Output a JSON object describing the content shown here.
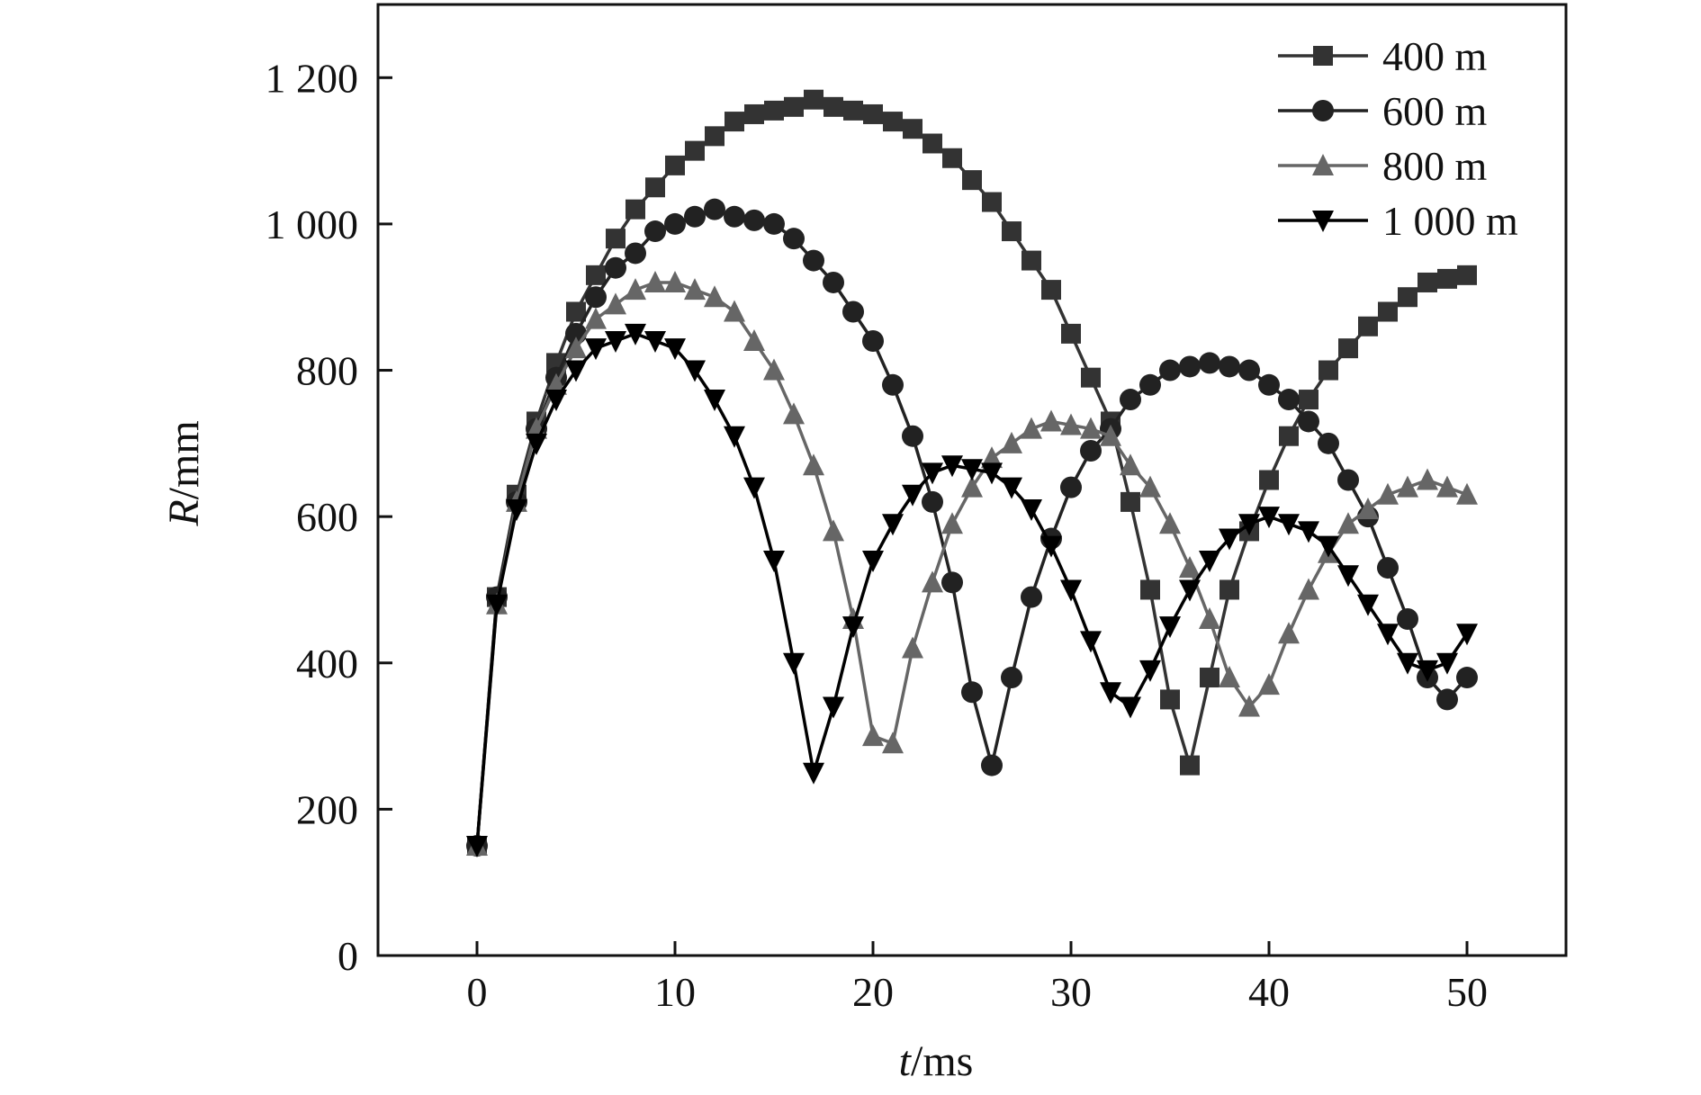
{
  "chart_data": {
    "type": "line",
    "title": "",
    "xlabel": {
      "var": "t",
      "unit": "/ms"
    },
    "ylabel": {
      "var": "R",
      "unit": "/mm"
    },
    "xlim": [
      -5,
      55
    ],
    "ylim": [
      0,
      1300
    ],
    "xticks": [
      0,
      10,
      20,
      30,
      40,
      50
    ],
    "xtick_labels": [
      "0",
      "10",
      "20",
      "30",
      "40",
      "50"
    ],
    "yticks": [
      0,
      200,
      400,
      600,
      800,
      1000,
      1200
    ],
    "ytick_labels": [
      "0",
      "200",
      "400",
      "600",
      "800",
      "1 000",
      "1 200"
    ],
    "grid": false,
    "legend_position": "top-right",
    "x": [
      0,
      1,
      2,
      3,
      4,
      5,
      6,
      7,
      8,
      9,
      10,
      11,
      12,
      13,
      14,
      15,
      16,
      17,
      18,
      19,
      20,
      21,
      22,
      23,
      24,
      25,
      26,
      27,
      28,
      29,
      30,
      31,
      32,
      33,
      34,
      35,
      36,
      37,
      38,
      39,
      40,
      41,
      42,
      43,
      44,
      45,
      46,
      47,
      48,
      49,
      50
    ],
    "series": [
      {
        "name": "400 m",
        "marker": "square",
        "color": "#333333",
        "values": [
          150,
          490,
          630,
          730,
          810,
          880,
          930,
          980,
          1020,
          1050,
          1080,
          1100,
          1120,
          1140,
          1150,
          1155,
          1160,
          1170,
          1160,
          1155,
          1150,
          1140,
          1130,
          1110,
          1090,
          1060,
          1030,
          990,
          950,
          910,
          850,
          790,
          730,
          620,
          500,
          350,
          260,
          380,
          500,
          580,
          650,
          710,
          760,
          800,
          830,
          860,
          880,
          900,
          920,
          925,
          930
        ]
      },
      {
        "name": "600 m",
        "marker": "circle",
        "color": "#222222",
        "values": [
          150,
          490,
          620,
          720,
          790,
          850,
          900,
          940,
          960,
          990,
          1000,
          1010,
          1020,
          1010,
          1005,
          1000,
          980,
          950,
          920,
          880,
          840,
          780,
          710,
          620,
          510,
          360,
          260,
          380,
          490,
          570,
          640,
          690,
          720,
          760,
          780,
          800,
          805,
          810,
          805,
          800,
          780,
          760,
          730,
          700,
          650,
          600,
          530,
          460,
          380,
          350,
          380
        ]
      },
      {
        "name": "800 m",
        "marker": "triangle-up",
        "color": "#666666",
        "values": [
          150,
          480,
          620,
          720,
          780,
          830,
          870,
          890,
          910,
          920,
          920,
          910,
          900,
          880,
          840,
          800,
          740,
          670,
          580,
          460,
          300,
          290,
          420,
          510,
          590,
          640,
          680,
          700,
          720,
          730,
          725,
          720,
          710,
          670,
          640,
          590,
          530,
          460,
          380,
          340,
          370,
          440,
          500,
          550,
          590,
          610,
          630,
          640,
          650,
          640,
          630
        ]
      },
      {
        "name": "1 000 m",
        "marker": "triangle-down",
        "color": "#000000",
        "values": [
          150,
          480,
          610,
          700,
          760,
          800,
          830,
          840,
          850,
          840,
          830,
          800,
          760,
          710,
          640,
          540,
          400,
          250,
          340,
          450,
          540,
          590,
          630,
          660,
          670,
          665,
          660,
          640,
          610,
          560,
          500,
          430,
          360,
          340,
          390,
          450,
          500,
          540,
          570,
          590,
          600,
          590,
          580,
          560,
          520,
          480,
          440,
          400,
          390,
          400,
          440
        ]
      }
    ]
  }
}
